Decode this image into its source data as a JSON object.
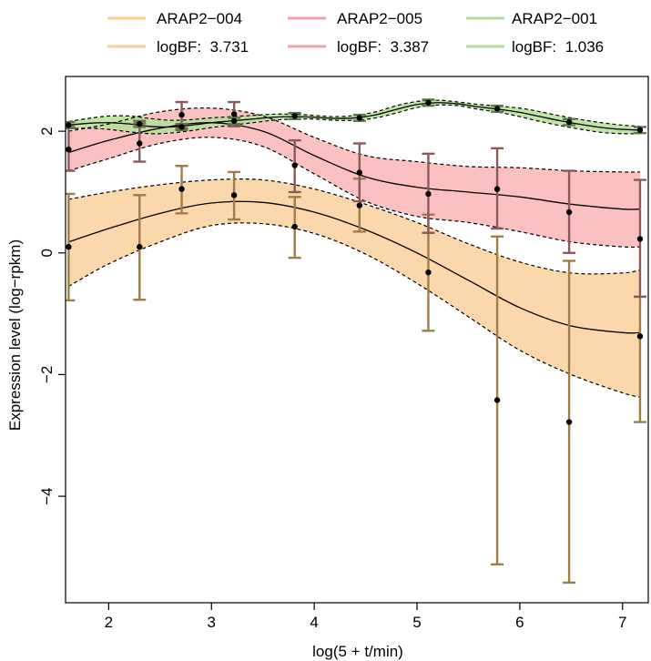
{
  "chart_data": {
    "type": "line",
    "xlabel": "log(5 + t/min)",
    "ylabel": "Expression level (log−rpkm)",
    "xlim": [
      1.58,
      7.25
    ],
    "ylim": [
      -5.75,
      2.9
    ],
    "xticks": [
      2,
      3,
      4,
      5,
      6,
      7
    ],
    "yticks": [
      -4,
      -2,
      0,
      2
    ],
    "xtick_labels": [
      "2",
      "3",
      "4",
      "5",
      "6",
      "7"
    ],
    "ytick_labels": [
      "−4",
      "−2",
      "0",
      "2"
    ],
    "legend_placement": "top",
    "grid": false,
    "series": [
      {
        "name": "ARAP2−004",
        "logbf_label": "logBF:  3.731",
        "line_color": "#f6cf92",
        "band_color": "#f9d19e",
        "errorbar_color": "#a07c48",
        "points": {
          "x": [
            1.61,
            2.3,
            2.71,
            3.22,
            3.81,
            4.44,
            5.11,
            5.78,
            6.48,
            7.17
          ],
          "y": [
            0.1,
            0.1,
            1.05,
            0.95,
            0.43,
            0.78,
            -0.32,
            -2.42,
            -2.78,
            -1.37
          ],
          "err_low": [
            -0.78,
            -0.77,
            0.65,
            0.55,
            -0.08,
            0.35,
            -1.28,
            -5.12,
            -5.42,
            -2.78
          ],
          "err_high": [
            0.97,
            0.95,
            1.43,
            1.33,
            0.92,
            1.22,
            0.63,
            0.27,
            -0.13,
            -0.72
          ]
        },
        "fit": {
          "x": [
            1.61,
            2.0,
            2.5,
            3.0,
            3.5,
            4.0,
            4.5,
            5.0,
            5.5,
            6.0,
            6.5,
            7.0,
            7.17
          ],
          "mean": [
            0.18,
            0.4,
            0.65,
            0.82,
            0.83,
            0.67,
            0.38,
            0.0,
            -0.45,
            -0.9,
            -1.2,
            -1.31,
            -1.31
          ],
          "lower": [
            -0.55,
            -0.18,
            0.18,
            0.45,
            0.48,
            0.32,
            -0.02,
            -0.5,
            -1.05,
            -1.6,
            -2.0,
            -2.3,
            -2.37
          ],
          "upper": [
            0.88,
            1.0,
            1.12,
            1.2,
            1.2,
            1.05,
            0.8,
            0.5,
            0.15,
            -0.15,
            -0.33,
            -0.33,
            -0.28
          ]
        }
      },
      {
        "name": "ARAP2−005",
        "logbf_label": "logBF:  3.387",
        "line_color": "#f5a0a0",
        "band_color": "#fab6b6",
        "errorbar_color": "#8c5a5a",
        "points": {
          "x": [
            1.61,
            2.3,
            2.71,
            3.22,
            3.81,
            4.44,
            5.11,
            5.78,
            6.48,
            7.17
          ],
          "y": [
            1.7,
            1.8,
            2.27,
            2.28,
            1.44,
            1.32,
            0.97,
            1.05,
            0.67,
            0.23
          ],
          "err_low": [
            1.35,
            1.5,
            2.05,
            2.08,
            1.0,
            0.85,
            0.33,
            0.4,
            0.0,
            -0.72
          ],
          "err_high": [
            2.07,
            2.13,
            2.48,
            2.48,
            1.85,
            1.8,
            1.63,
            1.72,
            1.35,
            1.2
          ]
        },
        "fit": {
          "x": [
            1.61,
            2.0,
            2.5,
            3.0,
            3.5,
            4.0,
            4.5,
            5.0,
            5.5,
            6.0,
            6.5,
            7.0,
            7.17
          ],
          "mean": [
            1.65,
            1.85,
            2.05,
            2.14,
            2.0,
            1.6,
            1.25,
            1.08,
            1.0,
            0.92,
            0.8,
            0.72,
            0.72
          ],
          "lower": [
            1.35,
            1.55,
            1.8,
            1.9,
            1.75,
            1.3,
            0.85,
            0.6,
            0.5,
            0.35,
            0.18,
            0.1,
            0.1
          ],
          "upper": [
            2.0,
            2.12,
            2.32,
            2.38,
            2.25,
            1.9,
            1.6,
            1.5,
            1.42,
            1.4,
            1.35,
            1.33,
            1.33
          ]
        }
      },
      {
        "name": "ARAP2−001",
        "logbf_label": "logBF:  1.036",
        "line_color": "#b5dc97",
        "band_color": "#b5e096",
        "errorbar_color": "#5a7a48",
        "points": {
          "x": [
            1.61,
            2.3,
            2.71,
            3.22,
            3.81,
            4.44,
            5.11,
            5.78,
            6.48,
            7.17
          ],
          "y": [
            2.1,
            2.12,
            2.07,
            2.17,
            2.25,
            2.22,
            2.47,
            2.37,
            2.15,
            2.02
          ],
          "err_low": [
            2.05,
            2.07,
            2.02,
            2.12,
            2.2,
            2.17,
            2.42,
            2.32,
            2.1,
            1.97
          ],
          "err_high": [
            2.15,
            2.17,
            2.12,
            2.22,
            2.3,
            2.27,
            2.52,
            2.42,
            2.2,
            2.07
          ]
        },
        "fit": {
          "x": [
            1.61,
            1.8,
            2.0,
            2.2,
            2.4,
            2.6,
            2.8,
            3.0,
            3.2,
            3.4,
            3.6,
            3.8,
            4.0,
            4.2,
            4.4,
            4.6,
            4.8,
            5.0,
            5.2,
            5.4,
            5.6,
            5.8,
            6.0,
            6.2,
            6.4,
            6.6,
            6.8,
            7.0,
            7.17
          ],
          "mean": [
            2.1,
            2.13,
            2.14,
            2.12,
            2.08,
            2.07,
            2.1,
            2.14,
            2.17,
            2.2,
            2.23,
            2.24,
            2.23,
            2.21,
            2.22,
            2.27,
            2.36,
            2.44,
            2.47,
            2.45,
            2.4,
            2.36,
            2.31,
            2.24,
            2.17,
            2.11,
            2.06,
            2.03,
            2.02
          ],
          "lower": [
            2.04,
            2.05,
            2.03,
            1.99,
            1.96,
            1.97,
            2.01,
            2.06,
            2.1,
            2.14,
            2.18,
            2.2,
            2.2,
            2.18,
            2.18,
            2.22,
            2.3,
            2.39,
            2.43,
            2.42,
            2.36,
            2.31,
            2.24,
            2.16,
            2.09,
            2.03,
            1.98,
            1.96,
            1.96
          ],
          "upper": [
            2.16,
            2.21,
            2.25,
            2.25,
            2.21,
            2.18,
            2.19,
            2.22,
            2.24,
            2.26,
            2.28,
            2.28,
            2.26,
            2.24,
            2.26,
            2.32,
            2.42,
            2.49,
            2.51,
            2.48,
            2.44,
            2.41,
            2.38,
            2.32,
            2.25,
            2.19,
            2.14,
            2.1,
            2.08
          ]
        }
      }
    ]
  }
}
